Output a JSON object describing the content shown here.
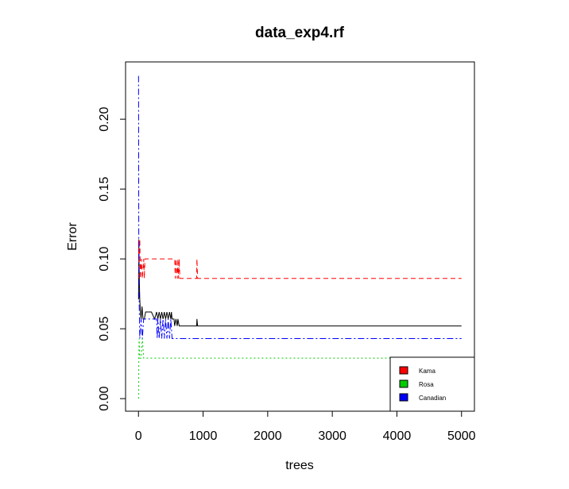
{
  "chart_data": {
    "type": "line",
    "title": "data_exp4.rf",
    "xlabel": "trees",
    "ylabel": "Error",
    "xlim": [
      -200,
      5200
    ],
    "ylim": [
      -0.009,
      0.241
    ],
    "x_ticks": [
      0,
      1000,
      2000,
      3000,
      4000,
      5000
    ],
    "x_tick_labels": [
      "0",
      "1000",
      "2000",
      "3000",
      "4000",
      "5000"
    ],
    "y_ticks": [
      0.0,
      0.05,
      0.1,
      0.15,
      0.2
    ],
    "y_tick_labels": [
      "0.00",
      "0.05",
      "0.10",
      "0.15",
      "0.20"
    ],
    "grid": false,
    "legend_position": "bottom-right",
    "legend": [
      {
        "label": "Kama",
        "color": "#ff0000"
      },
      {
        "label": "Rosa",
        "color": "#00cd00"
      },
      {
        "label": "Canadian",
        "color": "#0000ff"
      }
    ],
    "series": [
      {
        "color": "#000000",
        "dash": "none",
        "points": [
          [
            1,
            0.071
          ],
          [
            5,
            0.114
          ],
          [
            10,
            0.095
          ],
          [
            15,
            0.081
          ],
          [
            20,
            0.071
          ],
          [
            30,
            0.062
          ],
          [
            40,
            0.057
          ],
          [
            55,
            0.066
          ],
          [
            70,
            0.057
          ],
          [
            90,
            0.057
          ],
          [
            110,
            0.062
          ],
          [
            200,
            0.062
          ],
          [
            250,
            0.057
          ],
          [
            280,
            0.062
          ],
          [
            300,
            0.057
          ],
          [
            320,
            0.062
          ],
          [
            340,
            0.057
          ],
          [
            360,
            0.062
          ],
          [
            380,
            0.057
          ],
          [
            400,
            0.062
          ],
          [
            420,
            0.057
          ],
          [
            440,
            0.062
          ],
          [
            460,
            0.057
          ],
          [
            480,
            0.062
          ],
          [
            500,
            0.057
          ],
          [
            510,
            0.062
          ],
          [
            520,
            0.057
          ],
          [
            550,
            0.057
          ],
          [
            560,
            0.052
          ],
          [
            580,
            0.057
          ],
          [
            600,
            0.052
          ],
          [
            610,
            0.057
          ],
          [
            630,
            0.052
          ],
          [
            900,
            0.052
          ],
          [
            905,
            0.057
          ],
          [
            915,
            0.052
          ],
          [
            5000,
            0.052
          ]
        ]
      },
      {
        "color": "#ff0000",
        "dash": "6,4",
        "points": [
          [
            1,
            0.086
          ],
          [
            5,
            0.114
          ],
          [
            10,
            0.1
          ],
          [
            20,
            0.114
          ],
          [
            30,
            0.086
          ],
          [
            45,
            0.1
          ],
          [
            60,
            0.086
          ],
          [
            80,
            0.1
          ],
          [
            90,
            0.086
          ],
          [
            100,
            0.1
          ],
          [
            560,
            0.1
          ],
          [
            570,
            0.086
          ],
          [
            580,
            0.1
          ],
          [
            600,
            0.086
          ],
          [
            610,
            0.1
          ],
          [
            620,
            0.086
          ],
          [
            630,
            0.1
          ],
          [
            640,
            0.086
          ],
          [
            650,
            0.086
          ],
          [
            900,
            0.086
          ],
          [
            905,
            0.1
          ],
          [
            915,
            0.086
          ],
          [
            5000,
            0.086
          ]
        ]
      },
      {
        "color": "#00cd00",
        "dash": "2,3",
        "points": [
          [
            1,
            0.0
          ],
          [
            5,
            0.029
          ],
          [
            10,
            0.043
          ],
          [
            20,
            0.029
          ],
          [
            40,
            0.029
          ],
          [
            60,
            0.043
          ],
          [
            80,
            0.029
          ],
          [
            5000,
            0.029
          ]
        ]
      },
      {
        "color": "#0000ff",
        "dash": "8,3,2,3",
        "points": [
          [
            1,
            0.231
          ],
          [
            5,
            0.1
          ],
          [
            10,
            0.071
          ],
          [
            20,
            0.043
          ],
          [
            40,
            0.057
          ],
          [
            60,
            0.043
          ],
          [
            80,
            0.057
          ],
          [
            280,
            0.057
          ],
          [
            290,
            0.043
          ],
          [
            300,
            0.057
          ],
          [
            320,
            0.043
          ],
          [
            340,
            0.057
          ],
          [
            360,
            0.043
          ],
          [
            380,
            0.057
          ],
          [
            400,
            0.043
          ],
          [
            420,
            0.057
          ],
          [
            440,
            0.043
          ],
          [
            460,
            0.057
          ],
          [
            480,
            0.043
          ],
          [
            500,
            0.057
          ],
          [
            520,
            0.043
          ],
          [
            5000,
            0.043
          ]
        ]
      }
    ]
  }
}
